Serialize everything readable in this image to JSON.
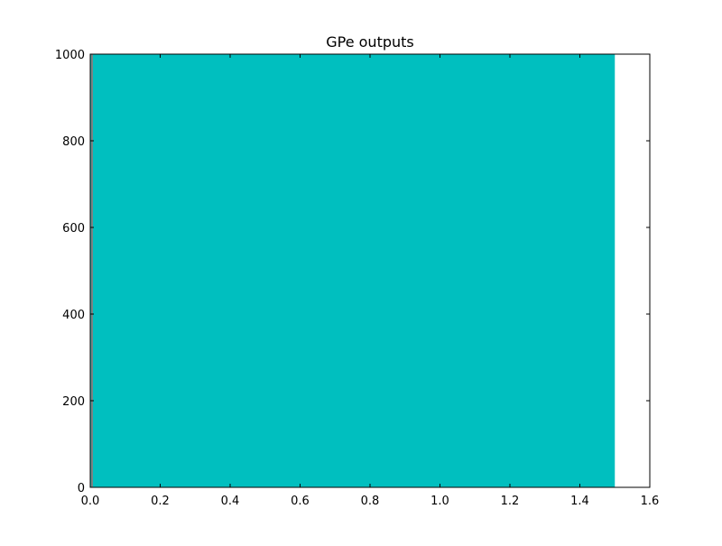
{
  "chart_data": {
    "type": "area",
    "title": "GPe outputs",
    "xlabel": "",
    "ylabel": "",
    "xlim": [
      0.0,
      1.6
    ],
    "ylim": [
      0,
      1000
    ],
    "x_ticks": [
      "0.0",
      "0.2",
      "0.4",
      "0.6",
      "0.8",
      "1.0",
      "1.2",
      "1.4",
      "1.6"
    ],
    "y_ticks": [
      "0",
      "200",
      "400",
      "600",
      "800",
      "1000"
    ],
    "grid": false,
    "legend": "none",
    "series": [
      {
        "x": [
          0.0,
          1.5
        ],
        "y_bottom": [
          0,
          0
        ],
        "y_top": [
          1000,
          1000
        ],
        "color": "#00bfbf"
      }
    ],
    "left_edge_line": {
      "x": 0.005,
      "y": [
        0,
        1000
      ],
      "color": "#808080"
    }
  }
}
